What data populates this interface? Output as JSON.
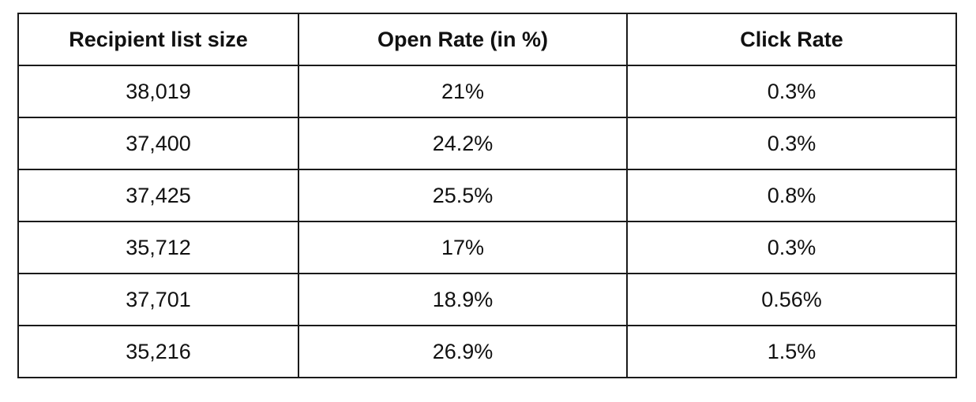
{
  "table": {
    "headers": [
      "Recipient list size",
      "Open Rate (in %)",
      "Click Rate"
    ],
    "rows": [
      [
        "38,019",
        "21%",
        "0.3%"
      ],
      [
        "37,400",
        "24.2%",
        "0.3%"
      ],
      [
        "37,425",
        "25.5%",
        "0.8%"
      ],
      [
        "35,712",
        "17%",
        "0.3%"
      ],
      [
        "37,701",
        "18.9%",
        "0.56%"
      ],
      [
        "35,216",
        "26.9%",
        "1.5%"
      ]
    ]
  }
}
